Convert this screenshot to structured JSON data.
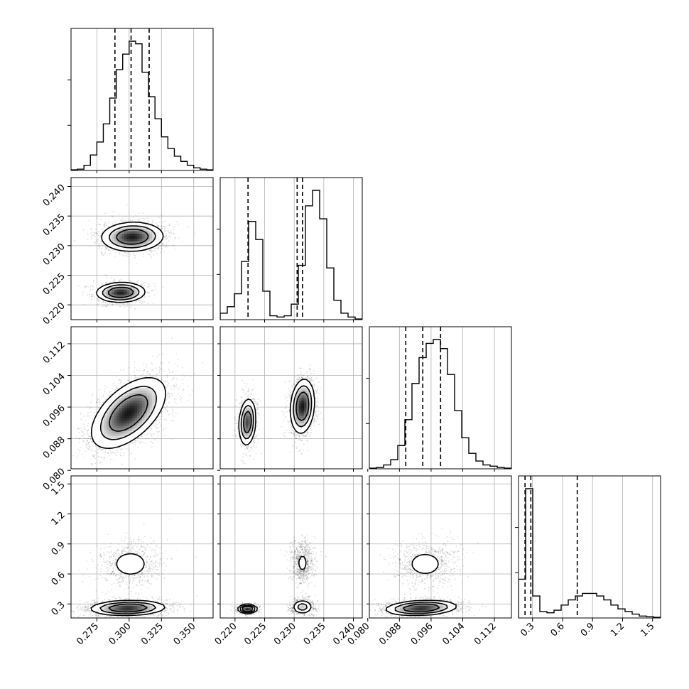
{
  "chart_data": {
    "type": "corner",
    "grid": true,
    "parameters": [
      {
        "range": [
          0.255,
          0.365
        ],
        "ticks": [
          "0.275",
          "0.300",
          "0.325",
          "0.350"
        ],
        "tick_values": [
          0.275,
          0.3,
          0.325,
          0.35
        ],
        "quantiles": [
          0.289,
          0.3015,
          0.3155
        ],
        "hist": [
          0.005,
          0.01,
          0.04,
          0.12,
          0.22,
          0.36,
          0.56,
          0.78,
          0.9,
          1.0,
          0.98,
          0.76,
          0.57,
          0.4,
          0.26,
          0.17,
          0.11,
          0.07,
          0.04,
          0.02,
          0.01,
          0.005
        ]
      },
      {
        "range": [
          0.2175,
          0.2415
        ],
        "ticks": [
          "0.220",
          "0.225",
          "0.230",
          "0.235",
          "0.240"
        ],
        "tick_values": [
          0.22,
          0.225,
          0.23,
          0.235,
          0.24
        ],
        "quantiles": [
          0.2222,
          0.2305,
          0.2314
        ],
        "hist": [
          0.05,
          0.1,
          0.2,
          0.45,
          0.76,
          0.62,
          0.22,
          0.03,
          0.02,
          0.03,
          0.12,
          0.42,
          0.88,
          1.0,
          0.78,
          0.4,
          0.15,
          0.05,
          0.02,
          0.005
        ]
      },
      {
        "range": [
          0.0804,
          0.1163
        ],
        "ticks": [
          "0.080",
          "0.088",
          "0.096",
          "0.104",
          "0.112"
        ],
        "tick_values": [
          0.08,
          0.088,
          0.096,
          0.104,
          0.112
        ],
        "quantiles": [
          0.0896,
          0.0939,
          0.0984
        ],
        "hist": [
          0.005,
          0.01,
          0.03,
          0.07,
          0.18,
          0.38,
          0.66,
          0.86,
          0.97,
          1.0,
          0.93,
          0.73,
          0.45,
          0.24,
          0.12,
          0.06,
          0.03,
          0.02,
          0.01,
          0.005
        ]
      },
      {
        "range": [
          0.16,
          1.58
        ],
        "ticks": [
          "0.3",
          "0.6",
          "0.9",
          "1.2",
          "1.5"
        ],
        "tick_values": [
          0.3,
          0.6,
          0.9,
          1.2,
          1.5
        ],
        "quantiles": [
          0.225,
          0.283,
          0.747
        ],
        "hist": [
          0.3,
          1.0,
          0.17,
          0.05,
          0.04,
          0.06,
          0.1,
          0.14,
          0.17,
          0.19,
          0.19,
          0.17,
          0.14,
          0.1,
          0.07,
          0.05,
          0.03,
          0.015,
          0.01,
          0.005
        ]
      }
    ],
    "pairs": [
      {
        "row": 1,
        "col": 0,
        "modes": [
          {
            "mx": 0.3025,
            "my": 0.2315,
            "sx": 0.0112,
            "sy": 0.00115,
            "rho": 0.05,
            "w": 0.65
          },
          {
            "mx": 0.2935,
            "my": 0.2221,
            "sx": 0.0088,
            "sy": 0.00078,
            "rho": 0.05,
            "w": 0.35
          }
        ]
      },
      {
        "row": 2,
        "col": 0,
        "modes": [
          {
            "mx": 0.2995,
            "my": 0.0945,
            "sx": 0.0135,
            "sy": 0.0042,
            "rho": 0.55,
            "w": 1.0
          }
        ]
      },
      {
        "row": 2,
        "col": 1,
        "modes": [
          {
            "mx": 0.2314,
            "my": 0.0962,
            "sx": 0.00095,
            "sy": 0.0032,
            "rho": 0.15,
            "w": 0.65
          },
          {
            "mx": 0.2221,
            "my": 0.0922,
            "sx": 0.00068,
            "sy": 0.0028,
            "rho": 0.15,
            "w": 0.35
          }
        ]
      },
      {
        "row": 2,
        "col": 2,
        "modes": []
      },
      {
        "row": 3,
        "col": 0,
        "modes": [
          {
            "mx": 0.299,
            "my": 0.26,
            "sx": 0.0135,
            "sy": 0.035,
            "rho": 0.1,
            "w": 0.72
          },
          {
            "mx": 0.301,
            "my": 0.7,
            "sx": 0.0105,
            "sy": 0.1,
            "rho": 0.0,
            "w": 0.28
          }
        ]
      },
      {
        "row": 3,
        "col": 1,
        "modes": [
          {
            "mx": 0.2314,
            "my": 0.27,
            "sx": 0.00085,
            "sy": 0.035,
            "rho": 0.0,
            "w": 0.3
          },
          {
            "mx": 0.2221,
            "my": 0.25,
            "sx": 0.00075,
            "sy": 0.02,
            "rho": 0.0,
            "w": 0.42
          },
          {
            "mx": 0.2314,
            "my": 0.71,
            "sx": 0.0009,
            "sy": 0.1,
            "rho": 0.0,
            "w": 0.28
          }
        ]
      },
      {
        "row": 3,
        "col": 2,
        "modes": [
          {
            "mx": 0.0935,
            "my": 0.26,
            "sx": 0.0042,
            "sy": 0.035,
            "rho": 0.2,
            "w": 0.72
          },
          {
            "mx": 0.0945,
            "my": 0.7,
            "sx": 0.0035,
            "sy": 0.1,
            "rho": 0.0,
            "w": 0.28
          }
        ]
      }
    ]
  }
}
